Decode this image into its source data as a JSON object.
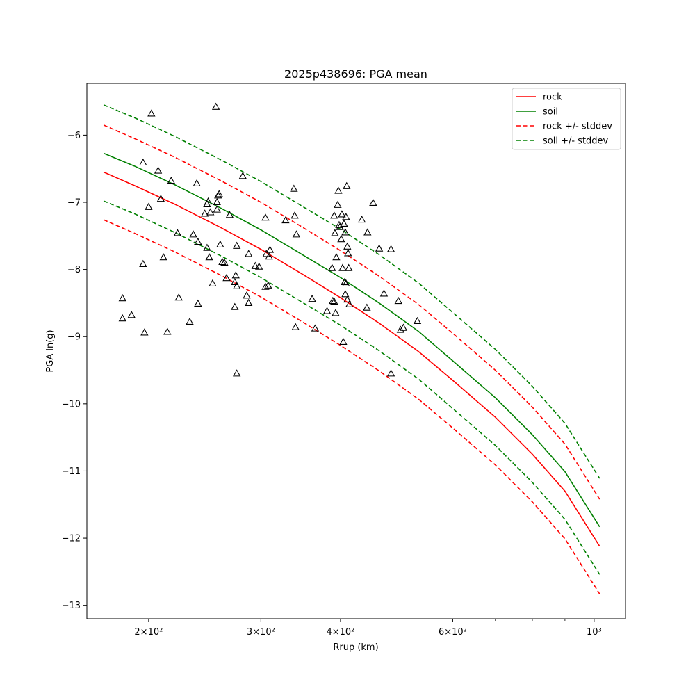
{
  "chart_data": {
    "type": "scatter",
    "title": "2025p438696: PGA mean",
    "xlabel": "Rrup (km)",
    "ylabel": "PGA ln(g)",
    "xscale": "log",
    "xlim": [
      160,
      1120
    ],
    "ylim": [
      -13.2,
      -5.23
    ],
    "xticks": [
      {
        "value": 200,
        "label": "2×10²"
      },
      {
        "value": 300,
        "label": "3×10²"
      },
      {
        "value": 400,
        "label": "4×10²"
      },
      {
        "value": 600,
        "label": "6×10²"
      },
      {
        "value": 1000,
        "label": "10³"
      }
    ],
    "xminor_ticks": [
      700,
      800,
      900
    ],
    "yticks": [
      -6,
      -7,
      -8,
      -9,
      -10,
      -11,
      -12,
      -13
    ],
    "ytick_labels": [
      "−6",
      "−7",
      "−8",
      "−9",
      "−10",
      "−11",
      "−12",
      "−13"
    ],
    "grid": false,
    "legend_position": "top-right",
    "legend": [
      {
        "label": "rock",
        "color": "#ff0000",
        "style": "solid"
      },
      {
        "label": "soil",
        "color": "#008000",
        "style": "solid"
      },
      {
        "label": "rock +/- stddev",
        "color": "#ff0000",
        "style": "dashed"
      },
      {
        "label": "soil +/- stddev",
        "color": "#008000",
        "style": "dashed"
      }
    ],
    "series": [
      {
        "name": "rock",
        "color": "#ff0000",
        "dash": "solid",
        "points": [
          [
            170,
            -6.55
          ],
          [
            190,
            -6.75
          ],
          [
            220,
            -7.03
          ],
          [
            260,
            -7.38
          ],
          [
            300,
            -7.7
          ],
          [
            350,
            -8.08
          ],
          [
            400,
            -8.42
          ],
          [
            460,
            -8.8
          ],
          [
            530,
            -9.22
          ],
          [
            600,
            -9.65
          ],
          [
            700,
            -10.2
          ],
          [
            800,
            -10.75
          ],
          [
            900,
            -11.3
          ],
          [
            1020,
            -12.12
          ]
        ]
      },
      {
        "name": "soil",
        "color": "#008000",
        "dash": "solid",
        "points": [
          [
            170,
            -6.27
          ],
          [
            190,
            -6.46
          ],
          [
            220,
            -6.74
          ],
          [
            260,
            -7.09
          ],
          [
            300,
            -7.41
          ],
          [
            350,
            -7.79
          ],
          [
            400,
            -8.12
          ],
          [
            460,
            -8.5
          ],
          [
            530,
            -8.92
          ],
          [
            600,
            -9.36
          ],
          [
            700,
            -9.91
          ],
          [
            800,
            -10.46
          ],
          [
            900,
            -11.01
          ],
          [
            1020,
            -11.83
          ]
        ]
      },
      {
        "name": "rock +/- stddev",
        "color": "#ff0000",
        "dash": "dashed",
        "points": [
          [
            170,
            -5.85
          ],
          [
            190,
            -6.05
          ],
          [
            220,
            -6.33
          ],
          [
            260,
            -6.68
          ],
          [
            300,
            -7.0
          ],
          [
            350,
            -7.38
          ],
          [
            400,
            -7.72
          ],
          [
            460,
            -8.1
          ],
          [
            530,
            -8.52
          ],
          [
            600,
            -8.95
          ],
          [
            700,
            -9.5
          ],
          [
            800,
            -10.05
          ],
          [
            900,
            -10.6
          ],
          [
            1020,
            -11.42
          ]
        ]
      },
      {
        "name": "rock +/- stddev",
        "color": "#ff0000",
        "dash": "dashed",
        "points": [
          [
            170,
            -7.26
          ],
          [
            190,
            -7.46
          ],
          [
            220,
            -7.74
          ],
          [
            260,
            -8.09
          ],
          [
            300,
            -8.41
          ],
          [
            350,
            -8.79
          ],
          [
            400,
            -9.13
          ],
          [
            460,
            -9.51
          ],
          [
            530,
            -9.93
          ],
          [
            600,
            -10.36
          ],
          [
            700,
            -10.91
          ],
          [
            800,
            -11.46
          ],
          [
            900,
            -12.01
          ],
          [
            1020,
            -12.83
          ]
        ]
      },
      {
        "name": "soil +/- stddev",
        "color": "#008000",
        "dash": "dashed",
        "points": [
          [
            170,
            -5.55
          ],
          [
            190,
            -5.74
          ],
          [
            220,
            -6.02
          ],
          [
            260,
            -6.37
          ],
          [
            300,
            -6.69
          ],
          [
            350,
            -7.07
          ],
          [
            400,
            -7.4
          ],
          [
            460,
            -7.78
          ],
          [
            530,
            -8.2
          ],
          [
            600,
            -8.64
          ],
          [
            700,
            -9.19
          ],
          [
            800,
            -9.74
          ],
          [
            900,
            -10.29
          ],
          [
            1020,
            -11.11
          ]
        ]
      },
      {
        "name": "soil +/- stddev",
        "color": "#008000",
        "dash": "dashed",
        "points": [
          [
            170,
            -6.98
          ],
          [
            190,
            -7.17
          ],
          [
            220,
            -7.45
          ],
          [
            260,
            -7.8
          ],
          [
            300,
            -8.12
          ],
          [
            350,
            -8.5
          ],
          [
            400,
            -8.83
          ],
          [
            460,
            -9.21
          ],
          [
            530,
            -9.63
          ],
          [
            600,
            -10.07
          ],
          [
            700,
            -10.62
          ],
          [
            800,
            -11.17
          ],
          [
            900,
            -11.72
          ],
          [
            1020,
            -12.54
          ]
        ]
      }
    ],
    "observations": [
      [
        182,
        -8.43
      ],
      [
        182,
        -8.73
      ],
      [
        188,
        -8.68
      ],
      [
        196,
        -6.41
      ],
      [
        196,
        -7.92
      ],
      [
        197,
        -8.94
      ],
      [
        200,
        -7.07
      ],
      [
        202,
        -5.68
      ],
      [
        207,
        -6.53
      ],
      [
        209,
        -6.95
      ],
      [
        211,
        -7.82
      ],
      [
        214,
        -8.93
      ],
      [
        217,
        -6.68
      ],
      [
        222,
        -7.46
      ],
      [
        223,
        -8.42
      ],
      [
        232,
        -8.78
      ],
      [
        235,
        -7.48
      ],
      [
        238,
        -6.72
      ],
      [
        239,
        -7.59
      ],
      [
        239,
        -8.51
      ],
      [
        245,
        -7.17
      ],
      [
        247,
        -7.68
      ],
      [
        247,
        -7.03
      ],
      [
        248,
        -6.99
      ],
      [
        249,
        -7.82
      ],
      [
        250,
        -7.15
      ],
      [
        252,
        -8.21
      ],
      [
        255,
        -5.58
      ],
      [
        256,
        -7.11
      ],
      [
        256,
        -7.0
      ],
      [
        257,
        -6.9
      ],
      [
        258,
        -6.88
      ],
      [
        259,
        -7.63
      ],
      [
        261,
        -7.89
      ],
      [
        263,
        -7.9
      ],
      [
        265,
        -8.13
      ],
      [
        268,
        -7.19
      ],
      [
        273,
        -8.19
      ],
      [
        273,
        -8.56
      ],
      [
        274,
        -8.09
      ],
      [
        275,
        -8.25
      ],
      [
        275,
        -7.65
      ],
      [
        275,
        -9.55
      ],
      [
        281,
        -6.61
      ],
      [
        285,
        -8.39
      ],
      [
        287,
        -7.77
      ],
      [
        287,
        -8.5
      ],
      [
        294,
        -7.95
      ],
      [
        298,
        -7.96
      ],
      [
        305,
        -7.23
      ],
      [
        305,
        -8.26
      ],
      [
        306,
        -7.77
      ],
      [
        308,
        -8.24
      ],
      [
        309,
        -7.81
      ],
      [
        310,
        -7.71
      ],
      [
        328,
        -7.27
      ],
      [
        338,
        -6.8
      ],
      [
        339,
        -7.2
      ],
      [
        340,
        -8.86
      ],
      [
        341,
        -7.48
      ],
      [
        361,
        -8.44
      ],
      [
        365,
        -8.88
      ],
      [
        381,
        -8.62
      ],
      [
        388,
        -7.98
      ],
      [
        389,
        -8.47
      ],
      [
        391,
        -7.2
      ],
      [
        391,
        -8.48
      ],
      [
        392,
        -7.46
      ],
      [
        393,
        -8.65
      ],
      [
        394,
        -7.82
      ],
      [
        396,
        -7.04
      ],
      [
        397,
        -6.83
      ],
      [
        398,
        -7.34
      ],
      [
        399,
        -7.37
      ],
      [
        401,
        -7.55
      ],
      [
        402,
        -7.18
      ],
      [
        403,
        -7.98
      ],
      [
        404,
        -9.08
      ],
      [
        405,
        -7.32
      ],
      [
        406,
        -8.19
      ],
      [
        407,
        -7.45
      ],
      [
        407,
        -8.37
      ],
      [
        408,
        -8.21
      ],
      [
        408,
        -7.22
      ],
      [
        409,
        -6.76
      ],
      [
        410,
        -8.45
      ],
      [
        410,
        -7.66
      ],
      [
        411,
        -7.76
      ],
      [
        412,
        -7.98
      ],
      [
        413,
        -8.52
      ],
      [
        432,
        -7.26
      ],
      [
        440,
        -8.57
      ],
      [
        441,
        -7.45
      ],
      [
        450,
        -7.01
      ],
      [
        460,
        -7.69
      ],
      [
        468,
        -8.36
      ],
      [
        480,
        -7.7
      ],
      [
        480,
        -9.55
      ],
      [
        493,
        -8.47
      ],
      [
        497,
        -8.9
      ],
      [
        502,
        -8.87
      ],
      [
        528,
        -8.77
      ]
    ]
  }
}
